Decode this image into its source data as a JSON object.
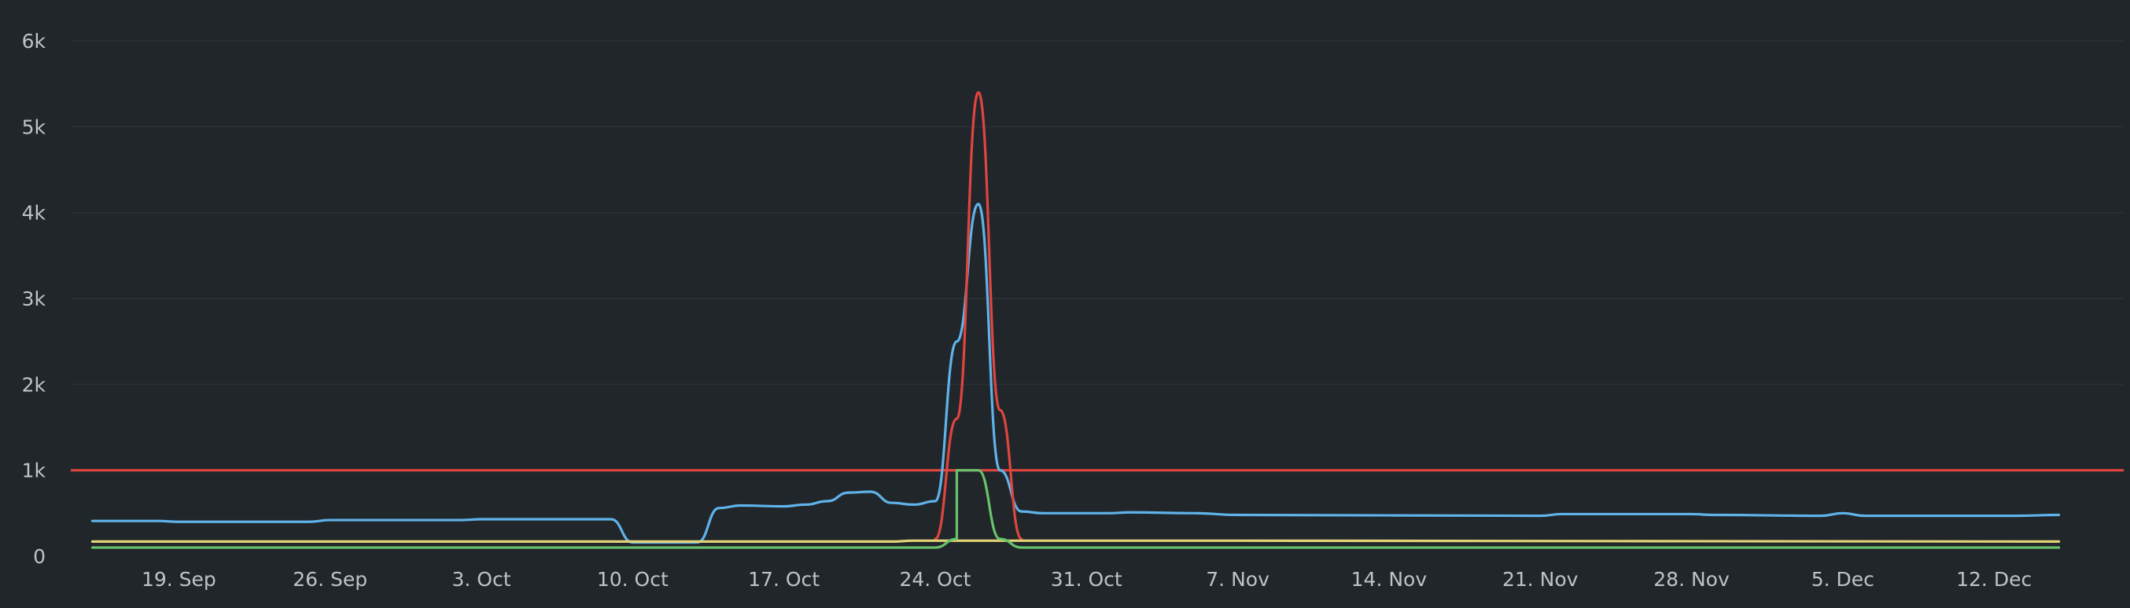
{
  "chart_data": {
    "type": "line",
    "title": "",
    "xlabel": "",
    "ylabel": "",
    "xlim": [
      "2021-09-14",
      "2021-12-18"
    ],
    "ylim": [
      0,
      6000
    ],
    "grid": true,
    "legend": "none",
    "y_ticks": [
      {
        "value": 0,
        "label": "0"
      },
      {
        "value": 1000,
        "label": "1k"
      },
      {
        "value": 2000,
        "label": "2k"
      },
      {
        "value": 3000,
        "label": "3k"
      },
      {
        "value": 4000,
        "label": "4k"
      },
      {
        "value": 5000,
        "label": "5k"
      },
      {
        "value": 6000,
        "label": "6k"
      }
    ],
    "x_ticks": [
      {
        "date": "2021-09-19",
        "label": "19. Sep"
      },
      {
        "date": "2021-09-26",
        "label": "26. Sep"
      },
      {
        "date": "2021-10-03",
        "label": "3. Oct"
      },
      {
        "date": "2021-10-10",
        "label": "10. Oct"
      },
      {
        "date": "2021-10-17",
        "label": "17. Oct"
      },
      {
        "date": "2021-10-24",
        "label": "24. Oct"
      },
      {
        "date": "2021-10-31",
        "label": "31. Oct"
      },
      {
        "date": "2021-11-07",
        "label": "7. Nov"
      },
      {
        "date": "2021-11-14",
        "label": "14. Nov"
      },
      {
        "date": "2021-11-21",
        "label": "21. Nov"
      },
      {
        "date": "2021-11-28",
        "label": "28. Nov"
      },
      {
        "date": "2021-12-05",
        "label": "5. Dec"
      },
      {
        "date": "2021-12-12",
        "label": "12. Dec"
      }
    ],
    "threshold": {
      "value": 1000,
      "color": "#e0453f"
    },
    "series": [
      {
        "color": "#5fb3e9",
        "points": [
          [
            "2021-09-15",
            410
          ],
          [
            "2021-09-18",
            410
          ],
          [
            "2021-09-19",
            400
          ],
          [
            "2021-09-25",
            400
          ],
          [
            "2021-09-26",
            420
          ],
          [
            "2021-10-02",
            420
          ],
          [
            "2021-10-03",
            430
          ],
          [
            "2021-10-09",
            430
          ],
          [
            "2021-10-10",
            160
          ],
          [
            "2021-10-13",
            160
          ],
          [
            "2021-10-14",
            560
          ],
          [
            "2021-10-15",
            590
          ],
          [
            "2021-10-17",
            580
          ],
          [
            "2021-10-18",
            600
          ],
          [
            "2021-10-19",
            640
          ],
          [
            "2021-10-20",
            740
          ],
          [
            "2021-10-21",
            750
          ],
          [
            "2021-10-22",
            620
          ],
          [
            "2021-10-23",
            600
          ],
          [
            "2021-10-24",
            640
          ],
          [
            "2021-10-25",
            2500
          ],
          [
            "2021-10-26",
            4100
          ],
          [
            "2021-10-27",
            1000
          ],
          [
            "2021-10-28",
            520
          ],
          [
            "2021-10-29",
            500
          ],
          [
            "2021-11-01",
            500
          ],
          [
            "2021-11-02",
            510
          ],
          [
            "2021-11-05",
            500
          ],
          [
            "2021-11-07",
            480
          ],
          [
            "2021-11-21",
            470
          ],
          [
            "2021-11-22",
            490
          ],
          [
            "2021-11-28",
            490
          ],
          [
            "2021-11-29",
            480
          ],
          [
            "2021-12-04",
            470
          ],
          [
            "2021-12-05",
            500
          ],
          [
            "2021-12-06",
            470
          ],
          [
            "2021-12-13",
            470
          ],
          [
            "2021-12-15",
            480
          ]
        ]
      },
      {
        "color": "#e0453f",
        "points": [
          [
            "2021-10-24",
            200
          ],
          [
            "2021-10-25",
            1600
          ],
          [
            "2021-10-26",
            5400
          ],
          [
            "2021-10-27",
            1700
          ],
          [
            "2021-10-28",
            200
          ]
        ]
      },
      {
        "color": "#e3d577",
        "points": [
          [
            "2021-09-15",
            170
          ],
          [
            "2021-10-10",
            170
          ],
          [
            "2021-10-13",
            170
          ],
          [
            "2021-10-22",
            170
          ],
          [
            "2021-10-23",
            180
          ],
          [
            "2021-11-07",
            180
          ],
          [
            "2021-12-15",
            170
          ]
        ]
      },
      {
        "color": "#69c36a",
        "points": [
          [
            "2021-09-15",
            100
          ],
          [
            "2021-10-24",
            100
          ],
          [
            "2021-10-25",
            200
          ],
          [
            "2021-10-25",
            1000
          ],
          [
            "2021-10-26",
            1000
          ],
          [
            "2021-10-27",
            200
          ],
          [
            "2021-10-28",
            100
          ],
          [
            "2021-12-15",
            100
          ]
        ]
      }
    ]
  }
}
